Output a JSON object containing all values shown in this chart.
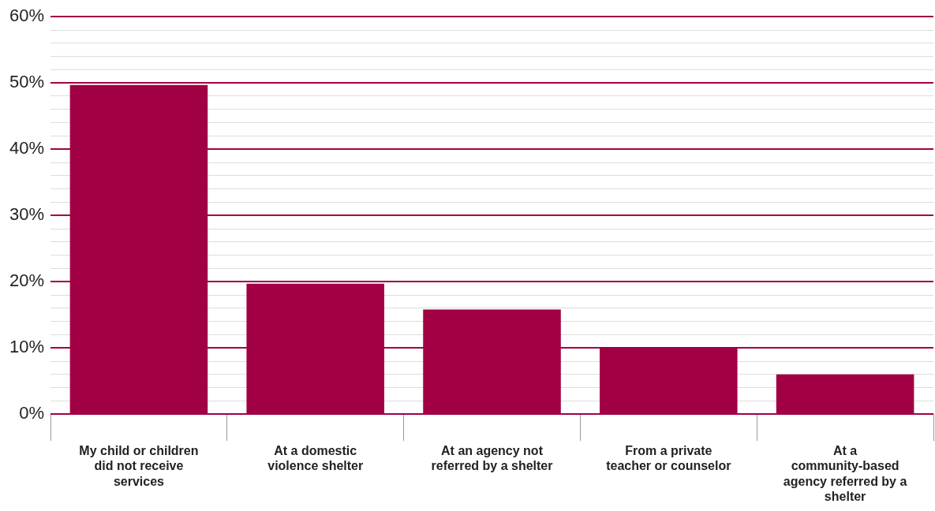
{
  "chart_data": {
    "type": "bar",
    "categories": [
      "My child or children did not receive services",
      "At a domestic violence shelter",
      "At an agency not referred by a shelter",
      "From a private teacher or counselor",
      "At a community-based agency referred by a shelter"
    ],
    "values": [
      49.7,
      19.7,
      15.8,
      10.0,
      6.0
    ],
    "color": "#a10044",
    "ylim": [
      0,
      60
    ],
    "yticks": [
      {
        "value": 0,
        "label": "0%"
      },
      {
        "value": 2,
        "label": null
      },
      {
        "value": 4,
        "label": null
      },
      {
        "value": 6,
        "label": null
      },
      {
        "value": 8,
        "label": null
      },
      {
        "value": 10,
        "label": "10%"
      },
      {
        "value": 12,
        "label": null
      },
      {
        "value": 14,
        "label": null
      },
      {
        "value": 16,
        "label": null
      },
      {
        "value": 18,
        "label": null
      },
      {
        "value": 20,
        "label": "20%"
      },
      {
        "value": 22,
        "label": null
      },
      {
        "value": 24,
        "label": null
      },
      {
        "value": 26,
        "label": null
      },
      {
        "value": 28,
        "label": null
      },
      {
        "value": 30,
        "label": "30%"
      },
      {
        "value": 32,
        "label": null
      },
      {
        "value": 34,
        "label": null
      },
      {
        "value": 36,
        "label": null
      },
      {
        "value": 38,
        "label": null
      },
      {
        "value": 40,
        "label": "40%"
      },
      {
        "value": 42,
        "label": null
      },
      {
        "value": 44,
        "label": null
      },
      {
        "value": 46,
        "label": null
      },
      {
        "value": 48,
        "label": null
      },
      {
        "value": 50,
        "label": "50%"
      },
      {
        "value": 52,
        "label": null
      },
      {
        "value": 54,
        "label": null
      },
      {
        "value": 56,
        "label": null
      },
      {
        "value": 58,
        "label": null
      },
      {
        "value": 60,
        "label": "60%"
      }
    ],
    "grid": "y"
  }
}
